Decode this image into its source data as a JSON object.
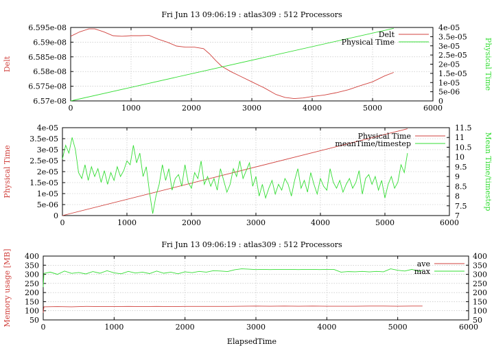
{
  "window_title": "",
  "colors": {
    "red": "#d0403c",
    "green": "#33dd33",
    "axis": "#000000",
    "grid": "#b8b8b8"
  },
  "chart_data": [
    {
      "id": "top",
      "type": "line",
      "title": "Fri Jun 13 09:06:19 : atlas309 : 512 Processors",
      "xlabel": "",
      "ylabel_left": "Delt",
      "ylabel_right": "Physical Time",
      "xlim": [
        0,
        6000
      ],
      "ylim_left": [
        6.57e-08,
        6.595e-08
      ],
      "ylim_right": [
        0,
        4e-05
      ],
      "x_ticks": [
        "0",
        "1000",
        "2000",
        "3000",
        "4000",
        "5000",
        "6000"
      ],
      "y_ticks_left": [
        "6.57e-08",
        "6.575e-08",
        "6.58e-08",
        "6.585e-08",
        "6.59e-08",
        "6.595e-08"
      ],
      "y_ticks_right": [
        "0",
        "5e-06",
        "1e-05",
        "1.5e-05",
        "2e-05",
        "2.5e-05",
        "3e-05",
        "3.5e-05",
        "4e-05"
      ],
      "grid": true,
      "legend_position": "top-right",
      "series": [
        {
          "name": "Delt",
          "axis": "left",
          "color": "red",
          "x": [
            0,
            150,
            300,
            400,
            550,
            700,
            850,
            1000,
            1150,
            1300,
            1450,
            1600,
            1750,
            1900,
            2050,
            2200,
            2300,
            2400,
            2500,
            2650,
            2800,
            3000,
            3200,
            3400,
            3550,
            3700,
            3850,
            4000,
            4200,
            4400,
            4600,
            4800,
            5000,
            5200,
            5350
          ],
          "y": [
            6.592e-08,
            6.5935e-08,
            6.5945e-08,
            6.5945e-08,
            6.5935e-08,
            6.5922e-08,
            6.592e-08,
            6.5922e-08,
            6.5922e-08,
            6.5923e-08,
            6.591e-08,
            6.59e-08,
            6.5887e-08,
            6.5883e-08,
            6.5883e-08,
            6.5878e-08,
            6.586e-08,
            6.5838e-08,
            6.5818e-08,
            6.58e-08,
            6.5785e-08,
            6.5765e-08,
            6.5745e-08,
            6.5722e-08,
            6.5712e-08,
            6.5708e-08,
            6.571e-08,
            6.5715e-08,
            6.572e-08,
            6.5728e-08,
            6.5738e-08,
            6.5752e-08,
            6.5765e-08,
            6.5785e-08,
            6.5797e-08
          ]
        },
        {
          "name": "Physical Time",
          "axis": "right",
          "color": "green",
          "x": [
            0,
            5350
          ],
          "y": [
            0,
            3.95e-05
          ]
        }
      ]
    },
    {
      "id": "middle",
      "type": "line",
      "title": "",
      "xlabel": "",
      "ylabel_left": "Physical Time",
      "ylabel_right": "Mean Time/timestep",
      "xlim": [
        0,
        6000
      ],
      "ylim_left": [
        0,
        4e-05
      ],
      "ylim_right": [
        7,
        11.5
      ],
      "x_ticks": [
        "0",
        "1000",
        "2000",
        "3000",
        "4000",
        "5000",
        "6000"
      ],
      "y_ticks_left": [
        "0",
        "5e-06",
        "1e-05",
        "1.5e-05",
        "2e-05",
        "2.5e-05",
        "3e-05",
        "3.5e-05",
        "4e-05"
      ],
      "y_ticks_right": [
        "7",
        "7.5",
        "8",
        "8.5",
        "9",
        "9.5",
        "10",
        "10.5",
        "11",
        "11.5"
      ],
      "grid": true,
      "legend_position": "top-right",
      "series": [
        {
          "name": "Physical Time",
          "axis": "left",
          "color": "red",
          "x": [
            0,
            5350
          ],
          "y": [
            0,
            3.95e-05
          ]
        },
        {
          "name": "meanTime/timestep",
          "axis": "right",
          "color": "green",
          "x": [
            0,
            50,
            100,
            150,
            200,
            250,
            300,
            350,
            400,
            450,
            500,
            550,
            600,
            650,
            700,
            750,
            800,
            850,
            900,
            950,
            1000,
            1050,
            1100,
            1150,
            1200,
            1250,
            1300,
            1350,
            1400,
            1450,
            1500,
            1550,
            1600,
            1650,
            1700,
            1750,
            1800,
            1850,
            1900,
            1950,
            2000,
            2050,
            2100,
            2150,
            2200,
            2250,
            2300,
            2350,
            2400,
            2450,
            2500,
            2550,
            2600,
            2650,
            2700,
            2750,
            2800,
            2850,
            2900,
            2950,
            3000,
            3050,
            3100,
            3150,
            3200,
            3250,
            3300,
            3350,
            3400,
            3450,
            3500,
            3550,
            3600,
            3650,
            3700,
            3750,
            3800,
            3850,
            3900,
            3950,
            4000,
            4050,
            4100,
            4150,
            4200,
            4250,
            4300,
            4350,
            4400,
            4450,
            4500,
            4550,
            4600,
            4650,
            4700,
            4750,
            4800,
            4850,
            4900,
            4950,
            5000,
            5050,
            5100,
            5150,
            5200,
            5250,
            5300,
            5350
          ],
          "y": [
            9.9,
            10.6,
            10.2,
            11.0,
            10.4,
            9.2,
            8.9,
            9.6,
            8.8,
            9.5,
            9.0,
            9.4,
            8.7,
            9.3,
            8.6,
            9.2,
            8.8,
            9.5,
            9.0,
            9.3,
            9.8,
            9.6,
            10.6,
            9.7,
            10.2,
            9.0,
            9.5,
            8.2,
            7.1,
            8.0,
            8.6,
            9.6,
            8.8,
            9.4,
            8.3,
            8.9,
            9.1,
            8.5,
            9.6,
            8.7,
            8.4,
            9.2,
            8.9,
            9.8,
            8.6,
            9.0,
            8.5,
            8.9,
            8.3,
            9.4,
            8.8,
            8.2,
            8.6,
            9.4,
            9.0,
            9.8,
            8.9,
            9.3,
            9.7,
            8.5,
            9.0,
            8.0,
            8.6,
            7.9,
            8.4,
            8.8,
            8.1,
            8.6,
            8.3,
            8.9,
            8.6,
            8.0,
            8.8,
            9.4,
            8.4,
            8.8,
            8.2,
            9.2,
            8.6,
            8.1,
            8.9,
            8.5,
            8.3,
            9.4,
            8.7,
            8.4,
            8.8,
            8.2,
            8.6,
            8.9,
            8.4,
            8.7,
            9.3,
            8.1,
            8.9,
            9.1,
            8.6,
            9.0,
            8.3,
            8.8,
            7.9,
            8.6,
            9.0,
            8.4,
            8.7,
            9.6,
            9.2,
            10.2
          ]
        }
      ]
    },
    {
      "id": "bottom",
      "type": "line",
      "title": "Fri Jun 13 09:06:19 : atlas309 : 512 Processors",
      "xlabel": "ElapsedTime",
      "ylabel_left": "Memory usage [MB]",
      "ylabel_right": "",
      "xlim": [
        0,
        6000
      ],
      "ylim_left": [
        50,
        400
      ],
      "ylim_right": [
        50,
        400
      ],
      "x_ticks": [
        "0",
        "1000",
        "2000",
        "3000",
        "4000",
        "5000",
        "6000"
      ],
      "y_ticks_left": [
        "50",
        "100",
        "150",
        "200",
        "250",
        "300",
        "350",
        "400"
      ],
      "y_ticks_right": [
        "50",
        "100",
        "150",
        "200",
        "250",
        "300",
        "350",
        "400"
      ],
      "grid": true,
      "legend_position": "top-right",
      "series": [
        {
          "name": "ave",
          "axis": "left",
          "color": "red",
          "x": [
            0,
            10,
            200,
            400,
            600,
            800,
            1000,
            1200,
            1400,
            1600,
            1800,
            2000,
            2200,
            2400,
            2600,
            2800,
            3000,
            3200,
            3400,
            3600,
            3800,
            4000,
            4200,
            4400,
            4600,
            4800,
            5000,
            5200,
            5350
          ],
          "y": [
            90,
            122,
            123,
            122,
            124,
            123,
            123,
            124,
            123,
            124,
            123,
            124,
            124,
            124,
            124,
            125,
            126,
            125,
            126,
            125,
            126,
            125,
            125,
            125,
            126,
            126,
            125,
            126,
            126
          ]
        },
        {
          "name": "max",
          "axis": "left",
          "color": "green",
          "x": [
            0,
            10,
            100,
            200,
            300,
            400,
            500,
            600,
            700,
            800,
            900,
            1000,
            1100,
            1200,
            1300,
            1400,
            1500,
            1600,
            1700,
            1800,
            1900,
            2000,
            2100,
            2200,
            2300,
            2400,
            2500,
            2600,
            2700,
            2800,
            2900,
            3000,
            3100,
            3200,
            3300,
            3400,
            3500,
            3600,
            3700,
            3800,
            3900,
            4000,
            4100,
            4200,
            4300,
            4400,
            4500,
            4600,
            4700,
            4800,
            4900,
            5000,
            5100,
            5200,
            5300,
            5350
          ],
          "y": [
            230,
            305,
            312,
            300,
            318,
            305,
            310,
            302,
            315,
            306,
            320,
            308,
            303,
            316,
            307,
            312,
            304,
            318,
            306,
            312,
            303,
            314,
            309,
            316,
            312,
            320,
            318,
            315,
            325,
            330,
            328,
            326,
            327,
            326,
            327,
            327,
            327,
            326,
            327,
            327,
            326,
            327,
            327,
            312,
            315,
            314,
            316,
            313,
            316,
            314,
            330,
            322,
            318,
            327,
            316,
            322
          ]
        }
      ]
    }
  ]
}
